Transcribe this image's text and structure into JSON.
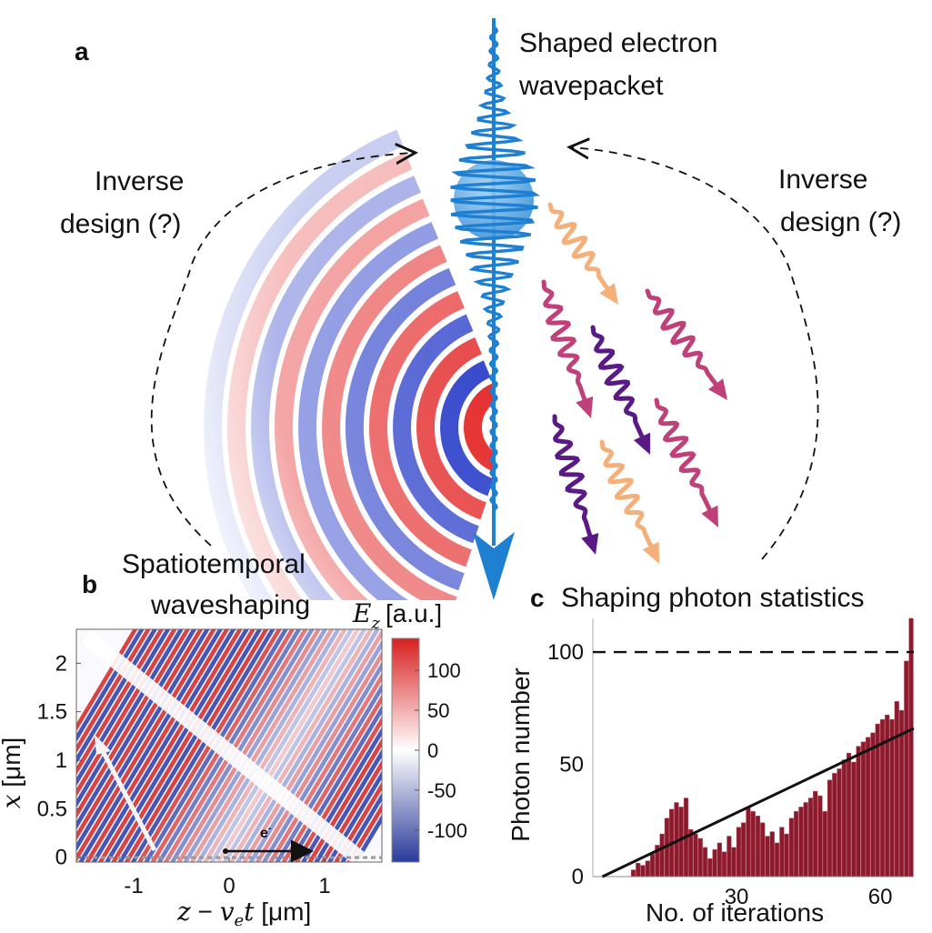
{
  "panel_a": {
    "label": "a",
    "wavepacket_label_line1": "Shaped electron",
    "wavepacket_label_line2": "wavepacket",
    "left_inverse_line1": "Inverse",
    "left_inverse_line2": "design (?)",
    "right_inverse_line1": "Inverse",
    "right_inverse_line2": "design (?)",
    "waveshaping_line1": "Spatiotemporal",
    "waveshaping_line2": "waveshaping",
    "colors": {
      "electron": "#1f7fd0",
      "field_red": "#e53030",
      "field_blue": "#2b3fc9",
      "photon_orange": "#f5b07a",
      "photon_magenta": "#c0407a",
      "photon_purple": "#5a1a86"
    }
  },
  "panel_b": {
    "label": "b",
    "colorbar_title_symbol": "E",
    "colorbar_title_sub": "z",
    "colorbar_title_unit": "[a.u.]",
    "electron_label": "e",
    "electron_label_sup": "-",
    "chart_data": {
      "type": "heatmap",
      "xlabel": "z − v_e t [μm]",
      "ylabel": "x [μm]",
      "x_ticks": [
        "-1",
        "0",
        "1"
      ],
      "y_ticks": [
        "0",
        "0.5",
        "1",
        "1.5",
        "2"
      ],
      "colorbar_ticks": [
        "100",
        "50",
        "0",
        "-50",
        "-100"
      ],
      "colorbar_range": [
        -140,
        140
      ],
      "xlim": [
        -1.6,
        1.6
      ],
      "ylim": [
        -0.05,
        2.35
      ]
    },
    "xlabel_parts": {
      "z": "z",
      "minus": " − ",
      "v": "v",
      "sub": "e",
      "t": "t",
      "unit": " [μm]"
    },
    "ylabel_parts": {
      "x": "x",
      "unit": " [μm]"
    }
  },
  "panel_c": {
    "label": "c",
    "title": "Shaping photon statistics",
    "chart_data": {
      "type": "bar",
      "xlabel": "No. of iterations",
      "ylabel": "Photon number",
      "x_ticks": [
        "30",
        "60"
      ],
      "y_ticks": [
        "0",
        "50",
        "100"
      ],
      "xlim": [
        0,
        67
      ],
      "ylim": [
        0,
        115
      ],
      "target_line_value": 100,
      "trend_line": {
        "x0": 2,
        "y0": 0,
        "x1": 67,
        "y1": 66
      },
      "x": [
        1,
        2,
        3,
        4,
        5,
        6,
        7,
        8,
        9,
        10,
        11,
        12,
        13,
        14,
        15,
        16,
        17,
        18,
        19,
        20,
        21,
        22,
        23,
        24,
        25,
        26,
        27,
        28,
        29,
        30,
        31,
        32,
        33,
        34,
        35,
        36,
        37,
        38,
        39,
        40,
        41,
        42,
        43,
        44,
        45,
        46,
        47,
        48,
        49,
        50,
        51,
        52,
        53,
        54,
        55,
        56,
        57,
        58,
        59,
        60,
        61,
        62,
        63,
        64,
        65,
        66,
        67
      ],
      "values": [
        0,
        0,
        0,
        0,
        0,
        0,
        0,
        0,
        3,
        6,
        5,
        7,
        10,
        14,
        19,
        26,
        30,
        33,
        31,
        35,
        21,
        19,
        17,
        13,
        8,
        12,
        15,
        11,
        18,
        13,
        22,
        24,
        31,
        29,
        27,
        24,
        18,
        20,
        15,
        22,
        19,
        26,
        29,
        31,
        33,
        35,
        38,
        36,
        29,
        43,
        46,
        48,
        52,
        55,
        51,
        58,
        60,
        62,
        64,
        68,
        70,
        72,
        70,
        78,
        74,
        96,
        115
      ],
      "bar_color": "#8b1a2c"
    }
  }
}
